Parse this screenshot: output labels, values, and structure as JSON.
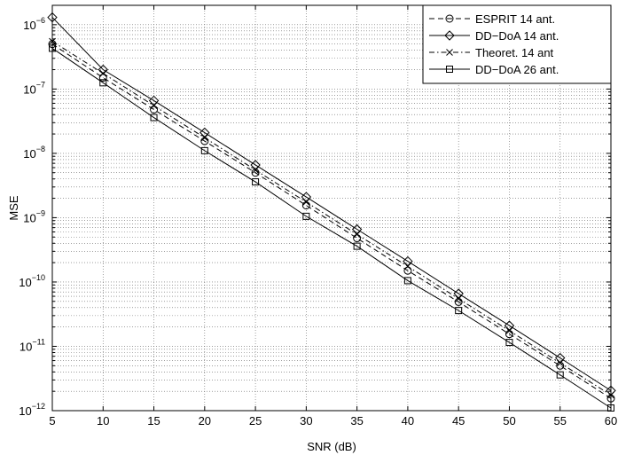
{
  "chart_data": {
    "type": "line",
    "xlabel": "SNR (dB)",
    "ylabel": "MSE",
    "xlim": [
      5,
      60
    ],
    "ylim": [
      1e-12,
      2e-06
    ],
    "yscale": "log",
    "grid": true,
    "legend_position": "top-right",
    "x": [
      5,
      10,
      15,
      20,
      25,
      30,
      35,
      40,
      45,
      50,
      55,
      60
    ],
    "x_ticks": [
      "5",
      "10",
      "15",
      "20",
      "25",
      "30",
      "35",
      "40",
      "45",
      "50",
      "55",
      "60"
    ],
    "y_ticks": [
      {
        "base": "10",
        "exp": "−6",
        "value": 1e-06
      },
      {
        "base": "10",
        "exp": "−7",
        "value": 1e-07
      },
      {
        "base": "10",
        "exp": "−8",
        "value": 1e-08
      },
      {
        "base": "10",
        "exp": "−9",
        "value": 1e-09
      },
      {
        "base": "10",
        "exp": "−10",
        "value": 1e-10
      },
      {
        "base": "10",
        "exp": "−11",
        "value": 1e-11
      },
      {
        "base": "10",
        "exp": "−12",
        "value": 1e-12
      }
    ],
    "series": [
      {
        "name": "ESPRIT 14 ant.",
        "line": "dash",
        "marker": "circle",
        "values": [
          5e-07,
          1.5e-07,
          4.8e-08,
          1.55e-08,
          5e-09,
          1.55e-09,
          4.8e-10,
          1.5e-10,
          4.9e-11,
          1.55e-11,
          5e-12,
          1.55e-12
        ]
      },
      {
        "name": "DD−DoA 14 ant.",
        "line": "solid",
        "marker": "diamond",
        "values": [
          1.3e-06,
          2e-07,
          6.6e-08,
          2.1e-08,
          6.6e-09,
          2.1e-09,
          6.6e-10,
          2.1e-10,
          6.6e-11,
          2.1e-11,
          6.6e-12,
          2.05e-12
        ]
      },
      {
        "name": "Theoret. 14 ant",
        "line": "dashdot",
        "marker": "x",
        "values": [
          5.5e-07,
          1.75e-07,
          5.5e-08,
          1.75e-08,
          5.5e-09,
          1.75e-09,
          5.5e-10,
          1.75e-10,
          5.5e-11,
          1.75e-11,
          5.5e-12,
          1.75e-12
        ]
      },
      {
        "name": "DD−DoA 26 ant.",
        "line": "solid",
        "marker": "square",
        "values": [
          4.3e-07,
          1.25e-07,
          3.6e-08,
          1.1e-08,
          3.6e-09,
          1.05e-09,
          3.6e-10,
          1.05e-10,
          3.6e-11,
          1.15e-11,
          3.6e-12,
          1.1e-12
        ]
      }
    ]
  }
}
